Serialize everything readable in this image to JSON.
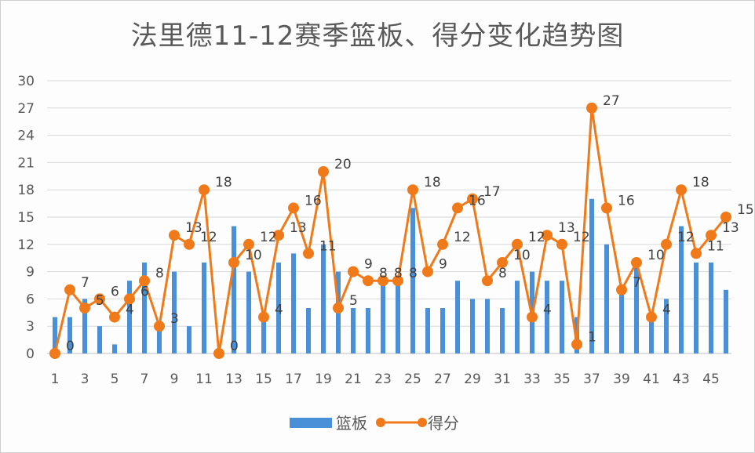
{
  "chart_data": {
    "type": "bar+line",
    "title": "法里德11-12赛季篮板、得分变化趋势图",
    "xlabel": "",
    "ylabel": "",
    "ylim": [
      0,
      30
    ],
    "yticks": [
      0,
      3,
      6,
      9,
      12,
      15,
      18,
      21,
      24,
      27,
      30
    ],
    "xtick_labels": [
      1,
      3,
      5,
      7,
      9,
      11,
      13,
      15,
      17,
      19,
      21,
      23,
      25,
      27,
      29,
      31,
      33,
      35,
      37,
      39,
      41,
      43,
      45
    ],
    "grid": true,
    "legend_position": "bottom",
    "x": [
      1,
      2,
      3,
      4,
      5,
      6,
      7,
      8,
      9,
      10,
      11,
      12,
      13,
      14,
      15,
      16,
      17,
      18,
      19,
      20,
      21,
      22,
      23,
      24,
      25,
      26,
      27,
      28,
      29,
      30,
      31,
      32,
      33,
      34,
      35,
      36,
      37,
      38,
      39,
      40,
      41,
      42,
      43,
      44,
      45,
      46
    ],
    "series": [
      {
        "name": "篮板",
        "type": "bar",
        "color": "#4a90d9",
        "values": [
          4,
          4,
          6,
          3,
          1,
          8,
          10,
          3,
          9,
          3,
          10,
          0,
          14,
          9,
          4,
          10,
          11,
          5,
          12,
          9,
          5,
          5,
          8,
          8,
          16,
          5,
          5,
          8,
          6,
          6,
          5,
          8,
          9,
          8,
          8,
          4,
          17,
          12,
          7,
          10,
          4,
          6,
          14,
          10,
          10,
          7
        ]
      },
      {
        "name": "得分",
        "type": "line",
        "color": "#f07a1a",
        "values": [
          0,
          7,
          5,
          6,
          4,
          6,
          8,
          3,
          13,
          12,
          18,
          0,
          10,
          12,
          4,
          13,
          16,
          11,
          20,
          5,
          9,
          8,
          8,
          8,
          18,
          9,
          12,
          16,
          17,
          8,
          10,
          12,
          4,
          13,
          12,
          1,
          27,
          16,
          7,
          10,
          4,
          12,
          18,
          11,
          13,
          15
        ]
      }
    ],
    "annotations": [
      {
        "x": 3,
        "text": "0"
      },
      {
        "x": 3,
        "text": "7"
      },
      {
        "x": 5,
        "text": "5"
      },
      {
        "x": 6,
        "text": "6"
      },
      {
        "x": 7,
        "text": "4"
      },
      {
        "x": 8,
        "text": "6"
      },
      {
        "x": 9,
        "text": "8"
      },
      {
        "x": 10,
        "text": "3"
      },
      {
        "x": 11,
        "text": "13"
      },
      {
        "x": 12,
        "text": "18"
      },
      {
        "x": 12,
        "text": "12"
      },
      {
        "x": 14,
        "text": "0"
      },
      {
        "x": 16,
        "text": "10"
      },
      {
        "x": 17,
        "text": "12"
      },
      {
        "x": 18,
        "text": "4"
      },
      {
        "x": 18,
        "text": "13"
      },
      {
        "x": 19,
        "text": "16"
      },
      {
        "x": 20,
        "text": "20"
      },
      {
        "x": 21,
        "text": "11"
      },
      {
        "x": 22,
        "text": "5"
      },
      {
        "x": 23,
        "text": "9"
      },
      {
        "x": 24,
        "text": "8"
      },
      {
        "x": 25,
        "text": "8"
      },
      {
        "x": 26,
        "text": "18"
      },
      {
        "x": 26,
        "text": "8"
      },
      {
        "x": 28,
        "text": "9"
      },
      {
        "x": 30,
        "text": "16"
      },
      {
        "x": 31,
        "text": "17"
      },
      {
        "x": 30,
        "text": "12"
      },
      {
        "x": 32,
        "text": "8"
      },
      {
        "x": 34,
        "text": "10"
      },
      {
        "x": 35,
        "text": "12"
      },
      {
        "x": 36,
        "text": "4"
      },
      {
        "x": 37,
        "text": "13"
      },
      {
        "x": 38,
        "text": "12"
      },
      {
        "x": 38,
        "text": "1"
      },
      {
        "x": 39,
        "text": "27"
      },
      {
        "x": 41,
        "text": "16"
      },
      {
        "x": 42,
        "text": "7"
      },
      {
        "x": 43,
        "text": "10"
      },
      {
        "x": 44,
        "text": "4"
      },
      {
        "x": 45,
        "text": "18"
      },
      {
        "x": 45,
        "text": "12"
      },
      {
        "x": 47,
        "text": "15"
      },
      {
        "x": 47,
        "text": "13"
      },
      {
        "x": 46,
        "text": "11"
      }
    ]
  },
  "legend": {
    "bar_label": "篮板",
    "line_label": "得分"
  }
}
